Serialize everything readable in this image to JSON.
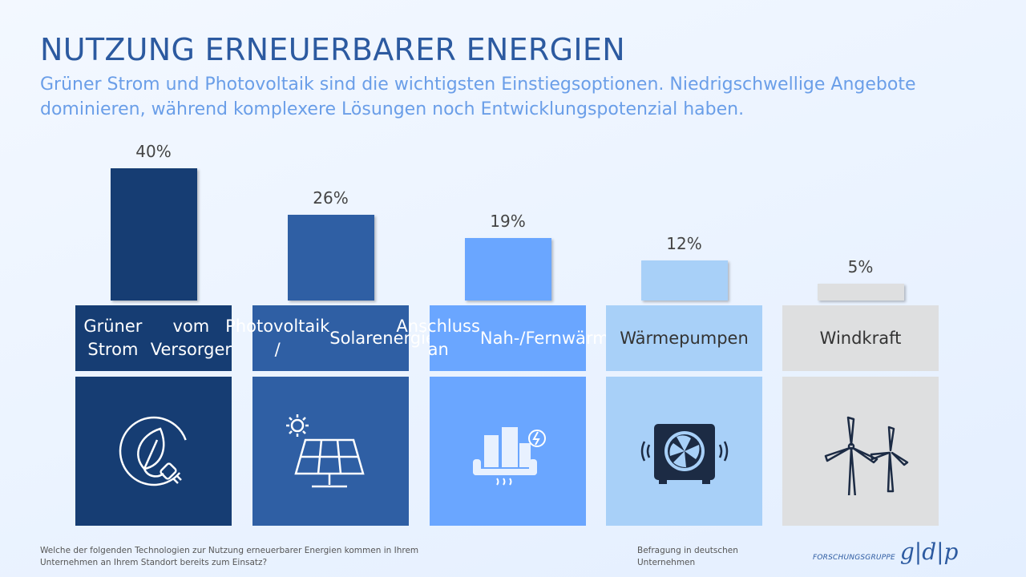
{
  "header": {
    "title": "NUTZUNG ERNEUERBARER ENERGIEN",
    "subtitle": "Grüner Strom und Photovoltaik sind die wichtigsten Einstiegsoptionen. Niedrigschwellige Angebote dominieren, während komplexere Lösungen noch Entwicklungspotenzial haben."
  },
  "chart_data": {
    "type": "bar",
    "categories": [
      "Grüner Strom vom Versorger",
      "Photovoltaik / Solarenergie",
      "Anschluss an Nah-/Fernwärme",
      "Wärmepumpen",
      "Windkraft"
    ],
    "values": [
      40,
      26,
      19,
      12,
      5
    ],
    "value_labels": [
      "40%",
      "26%",
      "19%",
      "12%",
      "5%"
    ],
    "label_lines": [
      [
        "Grüner Strom",
        "vom Versorger"
      ],
      [
        "Photovoltaik /",
        "Solarenergie"
      ],
      [
        "Anschluss an",
        "Nah-/Fernwärme"
      ],
      [
        "Wärmepumpen"
      ],
      [
        "Windkraft"
      ]
    ],
    "colors": [
      "#163d73",
      "#2f5fa4",
      "#6aa6ff",
      "#a8d0f8",
      "#dedfe0"
    ],
    "text_colors": [
      "#ffffff",
      "#ffffff",
      "#ffffff",
      "#333333",
      "#333333"
    ],
    "icons": [
      "plug-leaf-icon",
      "solar-panel-icon",
      "district-heating-icon",
      "heat-pump-icon",
      "wind-turbine-icon"
    ],
    "ylim": [
      0,
      40
    ],
    "grid": false,
    "legend": "none"
  },
  "footer": {
    "question": "Welche der folgenden Technologien zur Nutzung erneuerbarer Energien kommen in Ihrem Unternehmen an Ihrem Standort bereits zum Einsatz?",
    "sample": "Befragung in deutschen Unternehmen",
    "brand_small": "FORSCHUNGSGRUPPE",
    "brand_big": "g|d|p"
  }
}
